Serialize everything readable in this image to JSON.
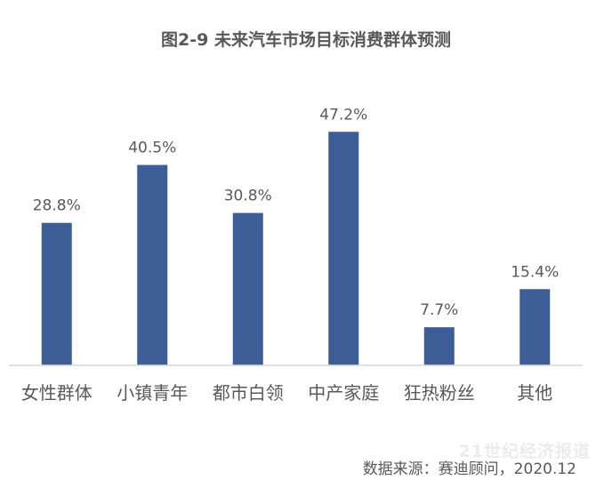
{
  "chart_data": {
    "type": "bar",
    "title": "图2-9  未来汽车市场目标消费群体预测",
    "categories": [
      "女性群体",
      "小镇青年",
      "都市白领",
      "中产家庭",
      "狂热粉丝",
      "其他"
    ],
    "values": [
      28.8,
      40.5,
      30.8,
      47.2,
      7.7,
      15.4
    ],
    "value_labels": [
      "28.8%",
      "40.5%",
      "30.8%",
      "47.2%",
      "7.7%",
      "15.4%"
    ],
    "unit": "%",
    "ylim": [
      0,
      53
    ],
    "grid": false,
    "legend": "none",
    "bar_color": "#3d5d97",
    "axis_color": "#d9d9d9"
  },
  "source": "数据来源：赛迪顾问，2020.12",
  "watermark": "21世纪经济报道"
}
